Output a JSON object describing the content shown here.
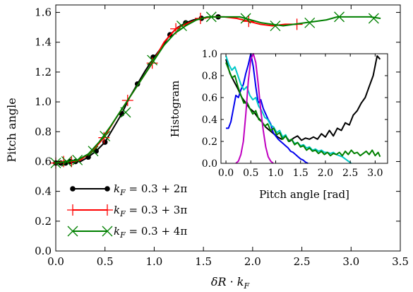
{
  "chart_data": [
    {
      "type": "line",
      "xlabel": "δR · k_F",
      "ylabel": "Pitch angle",
      "xlim": [
        0.0,
        3.5
      ],
      "ylim": [
        0.0,
        1.65
      ],
      "x_ticks": [
        "0.0",
        "0.5",
        "1.0",
        "1.5",
        "2.0",
        "2.5",
        "3.0",
        "3.5"
      ],
      "y_ticks": [
        "0.0",
        "0.2",
        "0.4",
        "0.6",
        "0.8",
        "1.0",
        "1.2",
        "1.4",
        "1.6"
      ],
      "grid": false,
      "legend_position": "bottom-left",
      "series": [
        {
          "name": "k_F = 0.3 + 2π",
          "legend_main": "k",
          "legend_sub": "F",
          "legend_rest": " = 0.3 + 2π",
          "color": "#000000",
          "marker": "dot",
          "x": [
            0.0,
            0.05,
            0.1,
            0.15,
            0.2,
            0.25,
            0.33,
            0.41,
            0.5,
            0.58,
            0.67,
            0.75,
            0.83,
            0.91,
            1.0,
            1.08,
            1.16,
            1.24,
            1.32,
            1.4,
            1.48,
            1.57,
            1.65
          ],
          "y": [
            0.59,
            0.59,
            0.59,
            0.6,
            0.6,
            0.6,
            0.63,
            0.67,
            0.73,
            0.82,
            0.92,
            1.03,
            1.12,
            1.21,
            1.3,
            1.37,
            1.45,
            1.5,
            1.53,
            1.55,
            1.56,
            1.57,
            1.57
          ]
        },
        {
          "name": "k_F = 0.3 + 3π",
          "legend_main": "k",
          "legend_sub": "F",
          "legend_rest": " = 0.3 + 3π",
          "color": "#ff0000",
          "marker": "plus",
          "x": [
            0.0,
            0.08,
            0.16,
            0.25,
            0.37,
            0.49,
            0.61,
            0.73,
            0.86,
            0.98,
            1.1,
            1.22,
            1.35,
            1.47,
            1.59,
            1.71,
            1.84,
            1.96,
            2.08,
            2.2,
            2.33,
            2.45
          ],
          "y": [
            0.59,
            0.6,
            0.6,
            0.61,
            0.67,
            0.76,
            0.89,
            1.01,
            1.14,
            1.26,
            1.4,
            1.49,
            1.53,
            1.56,
            1.57,
            1.57,
            1.56,
            1.54,
            1.52,
            1.51,
            1.52,
            1.52
          ]
        },
        {
          "name": "k_F = 0.3 + 4π",
          "legend_main": "k",
          "legend_sub": "F",
          "legend_rest": " = 0.3 + 4π",
          "color": "#008000",
          "marker": "x",
          "x": [
            0.0,
            0.11,
            0.22,
            0.33,
            0.44,
            0.55,
            0.66,
            0.77,
            0.88,
            0.99,
            1.1,
            1.21,
            1.32,
            1.43,
            1.54,
            1.65,
            1.76,
            1.87,
            1.98,
            2.09,
            2.2,
            2.31,
            2.42,
            2.53,
            2.64,
            2.75,
            2.86,
            2.97,
            3.08,
            3.19,
            3.3
          ],
          "y": [
            0.59,
            0.6,
            0.61,
            0.65,
            0.73,
            0.83,
            0.94,
            1.05,
            1.16,
            1.27,
            1.38,
            1.46,
            1.51,
            1.55,
            1.57,
            1.57,
            1.57,
            1.57,
            1.55,
            1.53,
            1.52,
            1.51,
            1.52,
            1.53,
            1.54,
            1.55,
            1.57,
            1.57,
            1.57,
            1.57,
            1.56
          ]
        }
      ],
      "marker_points": {
        "k_F = 0.3 + 2π": [
          [
            0.0,
            0.59
          ],
          [
            0.05,
            0.59
          ],
          [
            0.1,
            0.59
          ],
          [
            0.15,
            0.6
          ],
          [
            0.2,
            0.6
          ],
          [
            0.33,
            0.63
          ],
          [
            0.41,
            0.67
          ],
          [
            0.5,
            0.73
          ],
          [
            0.67,
            0.92
          ],
          [
            0.83,
            1.12
          ],
          [
            0.99,
            1.3
          ],
          [
            1.16,
            1.45
          ],
          [
            1.32,
            1.53
          ],
          [
            1.48,
            1.56
          ],
          [
            1.65,
            1.57
          ]
        ],
        "k_F = 0.3 + 3π": [
          [
            0.0,
            0.59
          ],
          [
            0.08,
            0.6
          ],
          [
            0.16,
            0.6
          ],
          [
            0.49,
            0.76
          ],
          [
            0.73,
            1.01
          ],
          [
            0.98,
            1.26
          ],
          [
            1.22,
            1.49
          ],
          [
            1.47,
            1.56
          ],
          [
            1.96,
            1.54
          ],
          [
            2.45,
            1.52
          ]
        ],
        "k_F = 0.3 + 4π": [
          [
            0.0,
            0.59
          ],
          [
            0.11,
            0.6
          ],
          [
            0.22,
            0.61
          ],
          [
            0.38,
            0.67
          ],
          [
            0.5,
            0.77
          ],
          [
            0.71,
            0.93
          ],
          [
            0.98,
            1.28
          ],
          [
            1.28,
            1.51
          ],
          [
            1.58,
            1.57
          ],
          [
            1.93,
            1.56
          ],
          [
            2.23,
            1.51
          ],
          [
            2.58,
            1.53
          ],
          [
            2.88,
            1.57
          ],
          [
            3.23,
            1.56
          ]
        ]
      }
    },
    {
      "type": "line",
      "xlabel": "Pitch angle [rad]",
      "ylabel": "Histogram",
      "xlim": [
        -0.1,
        3.25
      ],
      "ylim": [
        0.0,
        1.0
      ],
      "x_ticks": [
        "0.0",
        "0.5",
        "1.0",
        "1.5",
        "2.0",
        "2.5",
        "3.0"
      ],
      "y_ticks": [
        "0.0",
        "0.2",
        "0.4",
        "0.6",
        "0.8",
        "1.0"
      ],
      "grid": false,
      "series": [
        {
          "color": "#000000",
          "x": [
            0.0,
            0.08,
            0.16,
            0.24,
            0.32,
            0.4,
            0.48,
            0.56,
            0.64,
            0.72,
            0.8,
            0.88,
            0.96,
            1.04,
            1.12,
            1.2,
            1.28,
            1.36,
            1.44,
            1.52,
            1.6,
            1.68,
            1.76,
            1.84,
            1.92,
            2.0,
            2.08,
            2.16,
            2.24,
            2.32,
            2.4,
            2.48,
            2.56,
            2.64,
            2.72,
            2.8,
            2.88,
            2.96,
            3.04,
            3.1
          ],
          "y": [
            0.95,
            0.82,
            0.75,
            0.68,
            0.6,
            0.55,
            0.5,
            0.47,
            0.42,
            0.38,
            0.33,
            0.3,
            0.27,
            0.24,
            0.22,
            0.25,
            0.2,
            0.23,
            0.25,
            0.21,
            0.23,
            0.22,
            0.24,
            0.22,
            0.27,
            0.24,
            0.3,
            0.25,
            0.32,
            0.3,
            0.37,
            0.35,
            0.44,
            0.48,
            0.55,
            0.6,
            0.7,
            0.8,
            0.98,
            0.95
          ]
        },
        {
          "color": "#0000ee",
          "x": [
            0.0,
            0.05,
            0.1,
            0.15,
            0.2,
            0.25,
            0.3,
            0.35,
            0.4,
            0.45,
            0.5,
            0.55,
            0.6,
            0.65,
            0.7,
            0.75,
            0.8,
            0.85,
            0.9,
            0.95,
            1.0,
            1.05,
            1.1,
            1.15,
            1.2,
            1.25,
            1.3,
            1.35,
            1.4,
            1.45,
            1.5,
            1.55,
            1.6,
            1.65
          ],
          "y": [
            0.32,
            0.32,
            0.38,
            0.5,
            0.62,
            0.6,
            0.67,
            0.72,
            0.82,
            0.9,
            1.0,
            0.88,
            0.7,
            0.55,
            0.58,
            0.5,
            0.45,
            0.4,
            0.36,
            0.28,
            0.25,
            0.22,
            0.2,
            0.18,
            0.16,
            0.14,
            0.11,
            0.1,
            0.08,
            0.06,
            0.04,
            0.03,
            0.01,
            0.0
          ]
        },
        {
          "color": "#00c8c8",
          "x": [
            0.0,
            0.06,
            0.12,
            0.18,
            0.24,
            0.3,
            0.36,
            0.42,
            0.48,
            0.54,
            0.6,
            0.66,
            0.72,
            0.78,
            0.84,
            0.9,
            0.96,
            1.02,
            1.08,
            1.14,
            1.2,
            1.26,
            1.32,
            1.38,
            1.44,
            1.5,
            1.56,
            1.62,
            1.68,
            1.74,
            1.8,
            1.86,
            1.92,
            1.98,
            2.04,
            2.1,
            2.16,
            2.22,
            2.28,
            2.34,
            2.4,
            2.46,
            2.52
          ],
          "y": [
            0.98,
            0.9,
            0.85,
            0.88,
            0.8,
            0.72,
            0.67,
            0.7,
            0.62,
            0.58,
            0.6,
            0.52,
            0.48,
            0.42,
            0.4,
            0.35,
            0.33,
            0.28,
            0.3,
            0.24,
            0.26,
            0.2,
            0.22,
            0.18,
            0.19,
            0.16,
            0.17,
            0.14,
            0.15,
            0.12,
            0.13,
            0.11,
            0.12,
            0.1,
            0.1,
            0.09,
            0.1,
            0.08,
            0.07,
            0.06,
            0.04,
            0.02,
            0.0
          ]
        },
        {
          "color": "#008000",
          "x": [
            0.0,
            0.06,
            0.12,
            0.18,
            0.24,
            0.3,
            0.36,
            0.42,
            0.48,
            0.54,
            0.6,
            0.66,
            0.72,
            0.78,
            0.84,
            0.9,
            0.96,
            1.02,
            1.08,
            1.14,
            1.2,
            1.26,
            1.32,
            1.38,
            1.44,
            1.5,
            1.56,
            1.62,
            1.68,
            1.74,
            1.8,
            1.86,
            1.92,
            1.98,
            2.04,
            2.1,
            2.16,
            2.22,
            2.28,
            2.34,
            2.4,
            2.46,
            2.52,
            2.58,
            2.64,
            2.7,
            2.76,
            2.82,
            2.88,
            2.94,
            3.0,
            3.06,
            3.1
          ],
          "y": [
            0.92,
            0.85,
            0.78,
            0.8,
            0.7,
            0.62,
            0.55,
            0.56,
            0.5,
            0.45,
            0.48,
            0.4,
            0.38,
            0.34,
            0.36,
            0.3,
            0.32,
            0.26,
            0.28,
            0.22,
            0.25,
            0.2,
            0.22,
            0.17,
            0.19,
            0.15,
            0.16,
            0.12,
            0.14,
            0.11,
            0.12,
            0.09,
            0.11,
            0.08,
            0.1,
            0.07,
            0.09,
            0.08,
            0.1,
            0.07,
            0.11,
            0.08,
            0.12,
            0.09,
            0.1,
            0.07,
            0.09,
            0.11,
            0.08,
            0.12,
            0.07,
            0.1,
            0.06
          ]
        },
        {
          "color": "#c000c0",
          "x": [
            0.2,
            0.25,
            0.3,
            0.35,
            0.4,
            0.45,
            0.5,
            0.55,
            0.6,
            0.65,
            0.7,
            0.75,
            0.8,
            0.85,
            0.9,
            0.95
          ],
          "y": [
            0.0,
            0.02,
            0.08,
            0.2,
            0.45,
            0.75,
            0.95,
            1.0,
            0.92,
            0.72,
            0.48,
            0.3,
            0.15,
            0.06,
            0.02,
            0.0
          ]
        }
      ]
    }
  ]
}
